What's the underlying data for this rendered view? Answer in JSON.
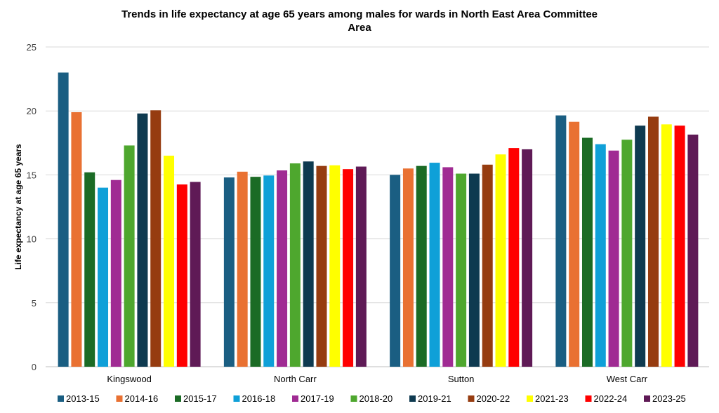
{
  "chart_data": {
    "type": "bar",
    "title": "Trends in life expectancy at  age 65 years among males for wards in North East Area Committee Area",
    "title_lines": [
      "Trends in life expectancy at  age 65 years among males for wards in North East Area Committee",
      "Area"
    ],
    "xlabel": "",
    "ylabel": "Life expectancy at  age 65 years",
    "ylim": [
      0,
      25
    ],
    "yticks": [
      "0",
      "5",
      "10",
      "15",
      "20",
      "25"
    ],
    "grid": true,
    "legend_position": "bottom",
    "categories": [
      "Kingswood",
      "North Carr",
      "Sutton",
      "West Carr"
    ],
    "series": [
      {
        "name": "2013-15",
        "color": "#1a5e82",
        "values": [
          23.0,
          14.8,
          15.0,
          19.65
        ]
      },
      {
        "name": "2014-16",
        "color": "#e97132",
        "values": [
          19.9,
          15.25,
          15.5,
          19.15
        ]
      },
      {
        "name": "2015-17",
        "color": "#1b6b25",
        "values": [
          15.2,
          14.85,
          15.7,
          17.9
        ]
      },
      {
        "name": "2016-18",
        "color": "#0fa0d8",
        "values": [
          14.0,
          14.95,
          15.95,
          17.4
        ]
      },
      {
        "name": "2017-19",
        "color": "#a02b93",
        "values": [
          14.6,
          15.35,
          15.6,
          16.9
        ]
      },
      {
        "name": "2018-20",
        "color": "#4ea72e",
        "values": [
          17.3,
          15.9,
          15.1,
          17.75
        ]
      },
      {
        "name": "2019-21",
        "color": "#0e3a50",
        "values": [
          19.8,
          16.05,
          15.1,
          18.85
        ]
      },
      {
        "name": "2020-22",
        "color": "#963c10",
        "values": [
          20.05,
          15.7,
          15.8,
          19.55
        ]
      },
      {
        "name": "2021-23",
        "color": "#ffff00",
        "values": [
          16.5,
          15.75,
          16.6,
          18.95
        ]
      },
      {
        "name": "2022-24",
        "color": "#ff0000",
        "values": [
          14.25,
          15.45,
          17.1,
          18.85
        ]
      },
      {
        "name": "2023-25",
        "color": "#5f1a56",
        "values": [
          14.45,
          15.65,
          17.0,
          18.15
        ]
      }
    ]
  }
}
